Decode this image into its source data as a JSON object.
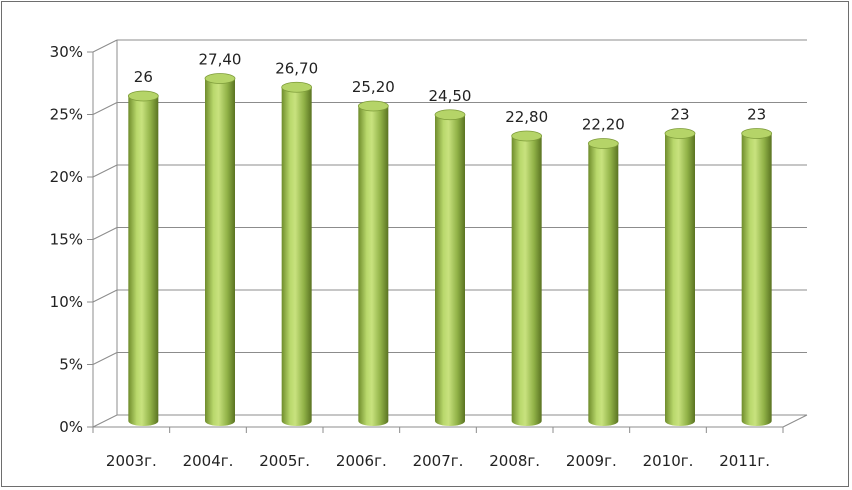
{
  "chart_data": {
    "type": "bar",
    "style": "3d-cylinder",
    "categories": [
      "2003г.",
      "2004г.",
      "2005г.",
      "2006г.",
      "2007г.",
      "2008г.",
      "2009г.",
      "2010г.",
      "2011г."
    ],
    "values": [
      26,
      27.4,
      26.7,
      25.2,
      24.5,
      22.8,
      22.2,
      23,
      23
    ],
    "data_labels": [
      "26",
      "27,40",
      "26,70",
      "25,20",
      "24,50",
      "22,80",
      "22,20",
      "23",
      "23"
    ],
    "title": "",
    "xlabel": "",
    "ylabel": "",
    "ylim": [
      0,
      30
    ],
    "yticks": [
      0,
      5,
      10,
      15,
      20,
      25,
      30
    ],
    "ytick_labels": [
      "0%",
      "5%",
      "10%",
      "15%",
      "20%",
      "25%",
      "30%"
    ],
    "grid": true,
    "legend": "none",
    "colors": {
      "bar_light": "#c6e07a",
      "bar_mid": "#9bbb59",
      "bar_dark": "#5f7a26",
      "bar_top": "#b5d468",
      "grid": "#8c8c8c",
      "frame": "#6e6e6e"
    }
  }
}
